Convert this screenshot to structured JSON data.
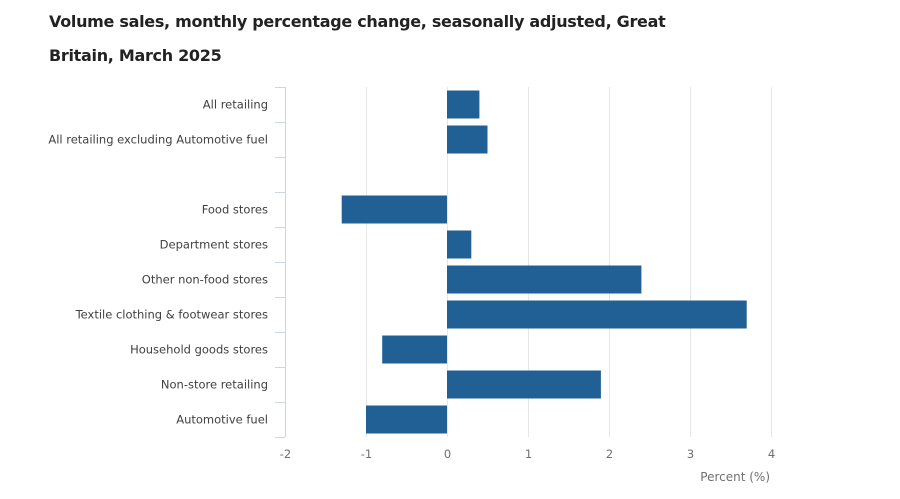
{
  "chart_data": {
    "type": "bar",
    "orientation": "horizontal",
    "title": "Volume sales, monthly percentage change, seasonally adjusted, Great Britain, March 2025",
    "categories": [
      "All retailing",
      "All retailing excluding Automotive fuel",
      "",
      "Food stores",
      "Department stores",
      "Other non-food stores",
      "Textile clothing & footwear stores",
      "Household goods stores",
      "Non-store retailing",
      "Automotive fuel"
    ],
    "values": [
      0.4,
      0.5,
      null,
      -1.3,
      0.3,
      2.4,
      3.7,
      -0.8,
      1.9,
      -1.0
    ],
    "xlabel": "Percent (%)",
    "ylabel": "",
    "xlim": [
      -2,
      4
    ],
    "xticks": [
      -2,
      -1,
      0,
      1,
      2,
      3,
      4
    ],
    "xtick_labels": [
      "-2",
      "-1",
      "0",
      "1",
      "2",
      "3",
      "4"
    ],
    "grid": true,
    "legend": "none",
    "bar_color": "#206095",
    "grid_color": "#e6e6e6",
    "axis_color": "#ccd6e0"
  }
}
